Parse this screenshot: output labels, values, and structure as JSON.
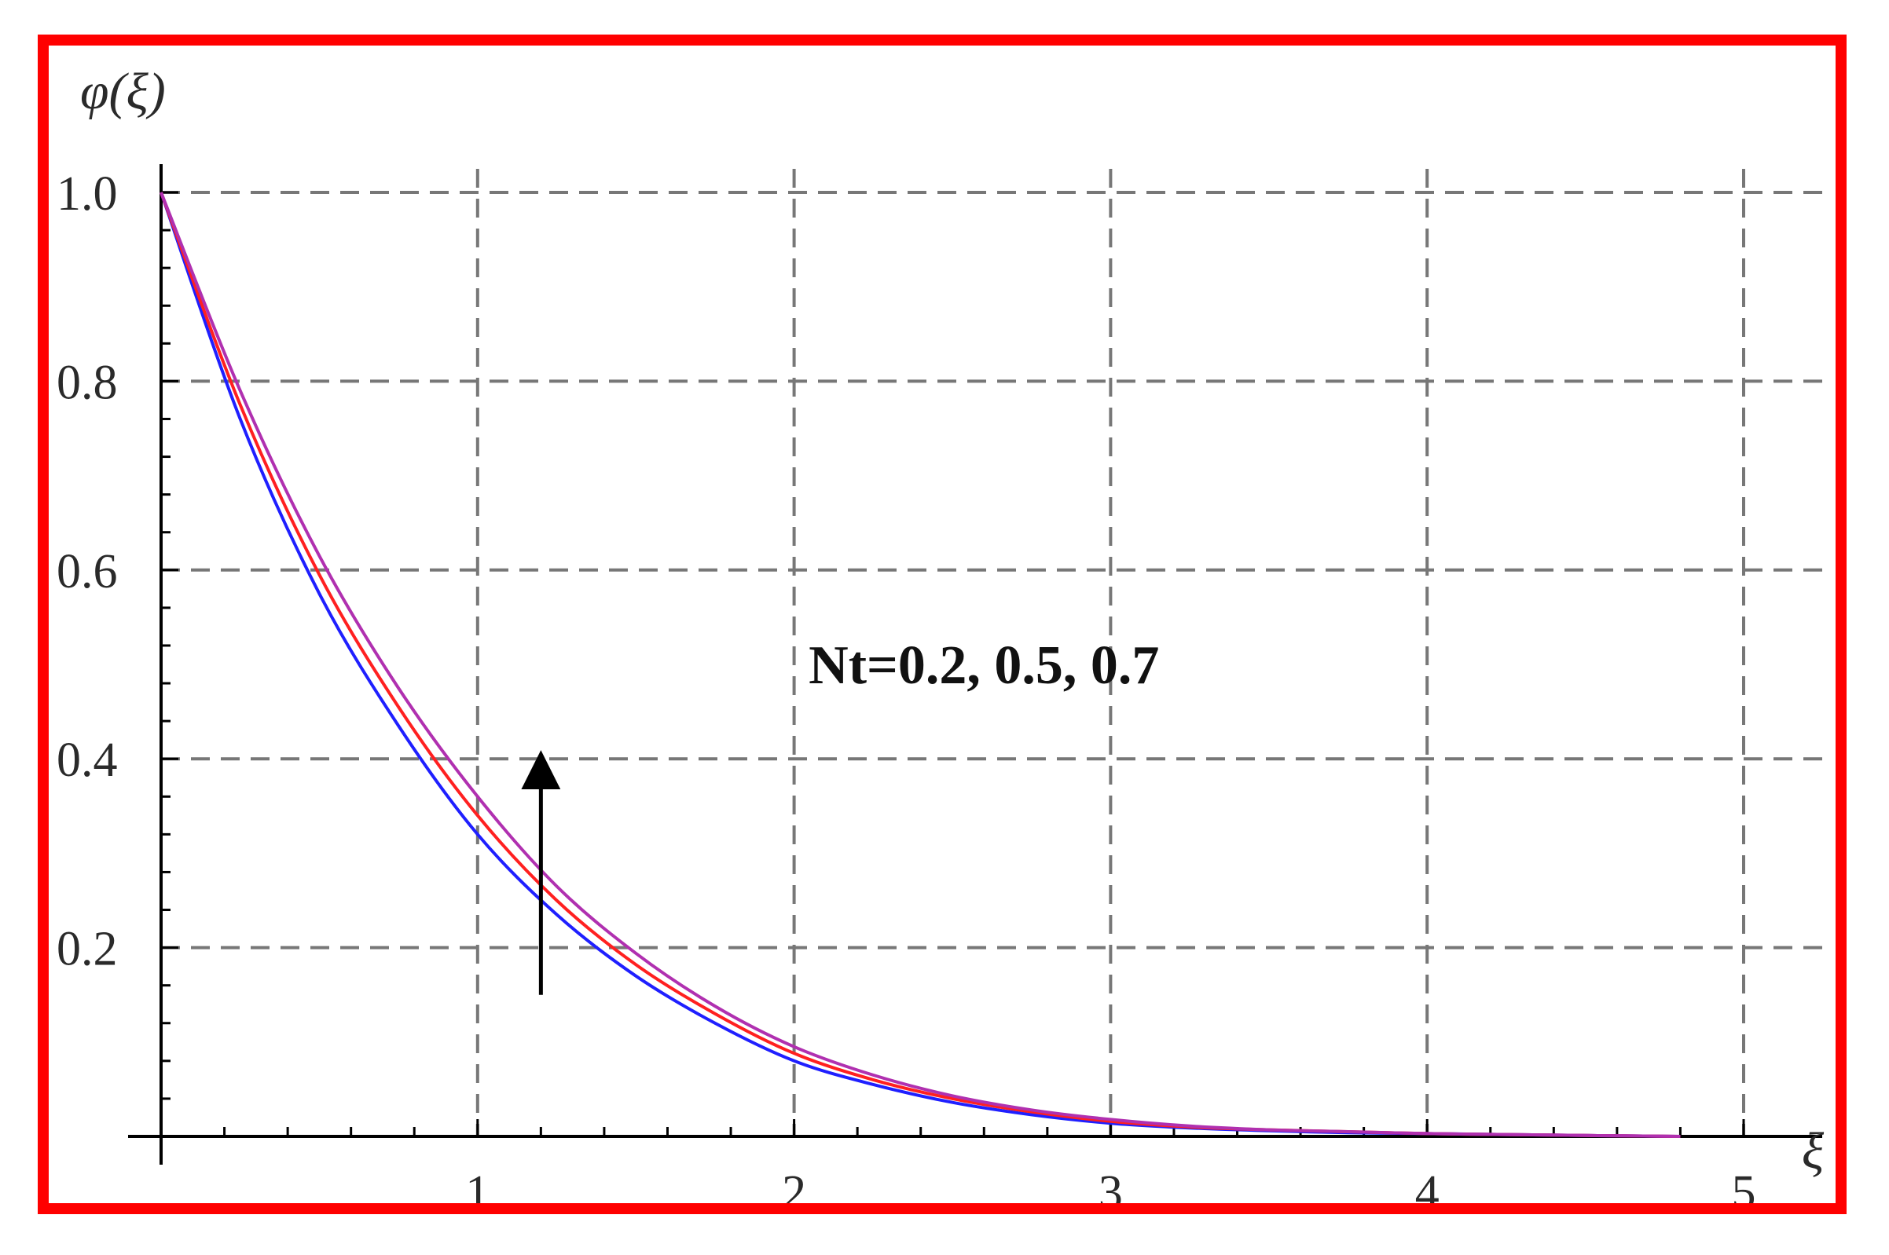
{
  "chart_data": {
    "type": "line",
    "title": "",
    "xlabel": "ξ",
    "ylabel": "φ(ξ)",
    "xlim": [
      0,
      5
    ],
    "ylim": [
      0,
      1
    ],
    "x_ticks": [
      1,
      2,
      3,
      4,
      5
    ],
    "x_tick_labels": [
      "1",
      "2",
      "3",
      "4",
      "5"
    ],
    "y_ticks": [
      0.2,
      0.4,
      0.6,
      0.8,
      1.0
    ],
    "y_tick_labels": [
      "0.2",
      "0.4",
      "0.6",
      "0.8",
      "1.0"
    ],
    "grid": true,
    "grid_style": "dashed",
    "legend": "none",
    "x": [
      0,
      0.25,
      0.5,
      0.75,
      1.0,
      1.25,
      1.5,
      1.75,
      2.0,
      2.25,
      2.5,
      2.75,
      3.0,
      3.25,
      3.5,
      3.75,
      4.0,
      4.25,
      4.5,
      4.8
    ],
    "series": [
      {
        "color": "#1f1fff",
        "values": [
          1.0,
          0.76,
          0.575,
          0.435,
          0.32,
          0.235,
          0.17,
          0.12,
          0.08,
          0.055,
          0.036,
          0.023,
          0.014,
          0.009,
          0.006,
          0.004,
          0.003,
          0.002,
          0.001,
          0.0
        ]
      },
      {
        "color": "#ff2020",
        "values": [
          1.0,
          0.775,
          0.595,
          0.455,
          0.34,
          0.25,
          0.182,
          0.13,
          0.088,
          0.06,
          0.04,
          0.026,
          0.016,
          0.01,
          0.007,
          0.005,
          0.003,
          0.002,
          0.001,
          0.0
        ]
      },
      {
        "color": "#b030b0",
        "values": [
          1.0,
          0.79,
          0.615,
          0.475,
          0.36,
          0.265,
          0.194,
          0.138,
          0.095,
          0.065,
          0.043,
          0.028,
          0.018,
          0.011,
          0.007,
          0.005,
          0.003,
          0.002,
          0.001,
          0.0
        ]
      }
    ],
    "annotations": [
      {
        "text": "Nt=0.2, 0.5, 0.7",
        "x": 2.6,
        "y": 0.5
      }
    ],
    "arrow": {
      "x": 1.2,
      "y_from": 0.15,
      "y_to": 0.43,
      "color": "#000000"
    }
  }
}
